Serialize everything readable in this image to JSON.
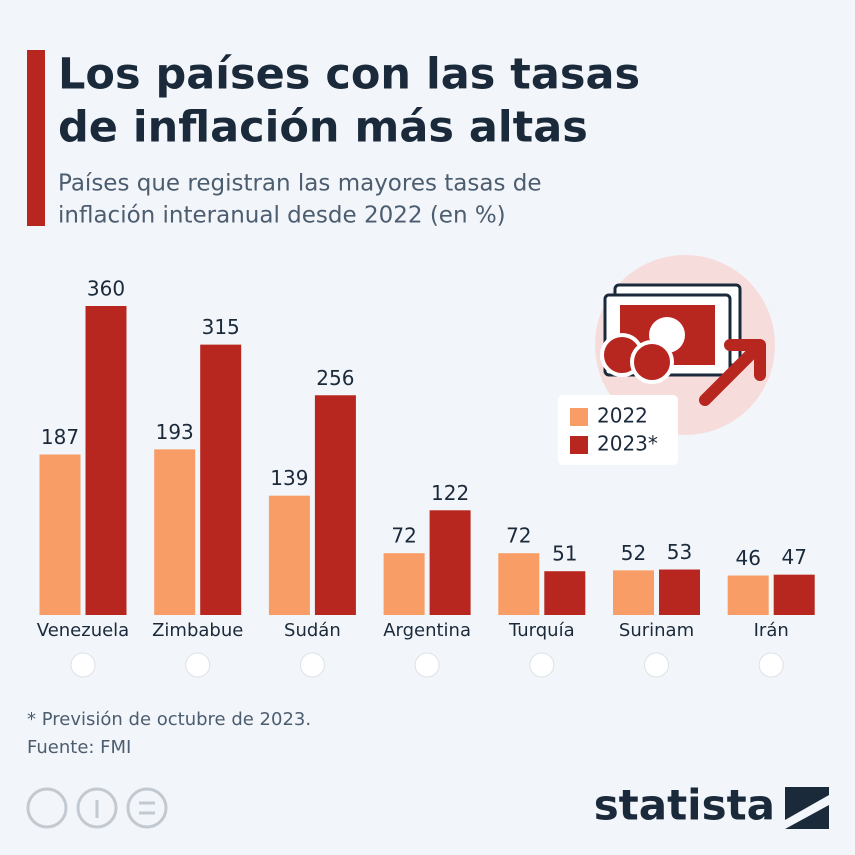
{
  "title_lines": [
    "Los países con las tasas",
    "de inflación más altas"
  ],
  "subtitle_lines": [
    "Países que registran las mayores tasas de",
    "inflación interanual desde 2022 (en %)"
  ],
  "chart_data": {
    "type": "bar",
    "categories": [
      "Venezuela",
      "Zimbabue",
      "Sudán",
      "Argentina",
      "Turquía",
      "Surinam",
      "Irán"
    ],
    "series": [
      {
        "name": "2022",
        "color": "#f79d65",
        "values": [
          187,
          193,
          139,
          72,
          72,
          52,
          46
        ]
      },
      {
        "name": "2023*",
        "color": "#b7261f",
        "values": [
          360,
          315,
          256,
          122,
          51,
          53,
          47
        ]
      }
    ],
    "ylim": [
      0,
      360
    ]
  },
  "footnote": "* Previsión de octubre de 2023.",
  "source": "Fuente: FMI",
  "brand": "statista"
}
